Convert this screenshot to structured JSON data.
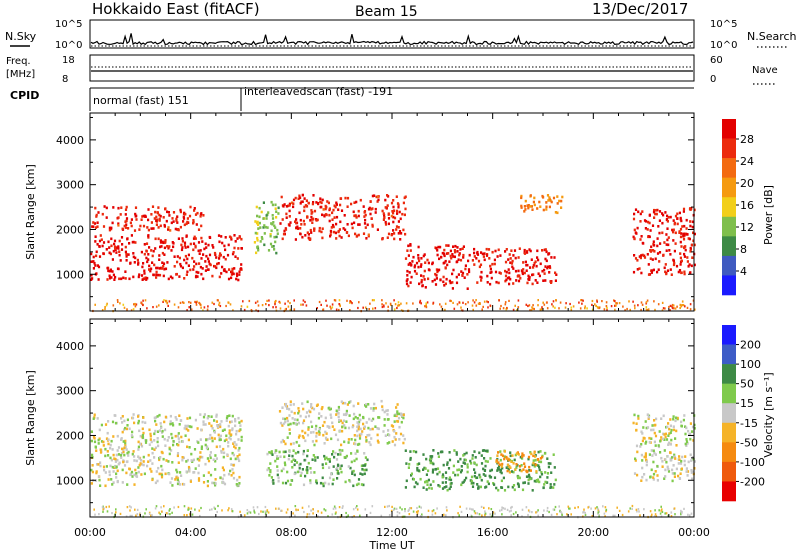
{
  "header": {
    "station": "Hokkaido East (fitACF)",
    "beam": "Beam 15",
    "date": "13/Dec/2017"
  },
  "noise_panel": {
    "left_label": "N.Sky",
    "right_label": "N.Search",
    "left_ticks": [
      "10^5",
      "10^0"
    ],
    "right_ticks": [
      "10^5",
      "10^0"
    ]
  },
  "freq_panel": {
    "left_label": "Freq.",
    "left_unit": "[MHz]",
    "right_label": "Nave",
    "left_ticks": [
      "18",
      "8"
    ],
    "right_ticks": [
      "60",
      "0"
    ]
  },
  "cpid": {
    "label": "CPID",
    "segments": [
      {
        "text": "normal (fast) 151",
        "start_hour": 0,
        "end_hour": 6
      },
      {
        "text": "interleavedscan (fast) -191",
        "start_hour": 6,
        "end_hour": 24
      }
    ]
  },
  "chart_data": [
    {
      "type": "heatmap",
      "name": "power",
      "ylabel": "Slant Range [km]",
      "y_ticks": [
        "1000",
        "2000",
        "3000",
        "4000"
      ],
      "ylim": [
        180,
        4600
      ],
      "x_ticks": [
        "00:00",
        "04:00",
        "08:00",
        "12:00",
        "16:00",
        "20:00",
        "00:00"
      ],
      "xlim_hours": [
        0,
        24
      ],
      "colorbar_label": "Power [dB]",
      "colorbar_ticks": [
        "4",
        "8",
        "12",
        "16",
        "20",
        "24",
        "28"
      ],
      "colorbar_colors": [
        "#1b1bff",
        "#3f5ac0",
        "#3d8a45",
        "#7fbf4c",
        "#f2cf1a",
        "#f59a10",
        "#f36a10",
        "#ec2a0d",
        "#e30000"
      ],
      "regions": [
        {
          "t0": 0.0,
          "t1": 6.0,
          "r0": 900,
          "r1": 1900,
          "value": 28
        },
        {
          "t0": 0.0,
          "t1": 4.5,
          "r0": 2000,
          "r1": 2550,
          "value": 26
        },
        {
          "t0": 6.5,
          "t1": 7.5,
          "r0": 1500,
          "r1": 2700,
          "value": 12
        },
        {
          "t0": 7.5,
          "t1": 12.5,
          "r0": 1800,
          "r1": 2800,
          "value": 26
        },
        {
          "t0": 12.5,
          "t1": 15.0,
          "r0": 700,
          "r1": 1700,
          "value": 28
        },
        {
          "t0": 15.0,
          "t1": 18.5,
          "r0": 800,
          "r1": 1600,
          "value": 27
        },
        {
          "t0": 17.0,
          "t1": 19.0,
          "r0": 2400,
          "r1": 2800,
          "value": 20
        },
        {
          "t0": 21.5,
          "t1": 24.0,
          "r0": 1000,
          "r1": 2500,
          "value": 27
        }
      ]
    },
    {
      "type": "heatmap",
      "name": "velocity",
      "ylabel": "Slant Range [km]",
      "y_ticks": [
        "1000",
        "2000",
        "3000",
        "4000"
      ],
      "ylim": [
        180,
        4600
      ],
      "x_ticks": [
        "00:00",
        "04:00",
        "08:00",
        "12:00",
        "16:00",
        "20:00",
        "00:00"
      ],
      "xlim_hours": [
        0,
        24
      ],
      "xlabel": "Time UT",
      "colorbar_label": "Velocity [m s⁻¹]",
      "colorbar_ticks": [
        "200",
        "100",
        "50",
        "15",
        "-15",
        "-50",
        "-100",
        "-200"
      ],
      "colorbar_colors": [
        "#1a1aff",
        "#3d5cc7",
        "#3d8a45",
        "#7fca4c",
        "#c8c8c8",
        "#f5b328",
        "#f58a10",
        "#ef5a0d",
        "#e80000"
      ],
      "regions": [
        {
          "t0": 0.0,
          "t1": 6.0,
          "r0": 900,
          "r1": 2500,
          "value": 0
        },
        {
          "t0": 7.5,
          "t1": 12.5,
          "r0": 1800,
          "r1": 2800,
          "value": 0
        },
        {
          "t0": 7.0,
          "t1": 11.0,
          "r0": 900,
          "r1": 1700,
          "value": 40
        },
        {
          "t0": 12.5,
          "t1": 18.5,
          "r0": 800,
          "r1": 1700,
          "value": 60
        },
        {
          "t0": 16.0,
          "t1": 18.0,
          "r0": 1200,
          "r1": 1700,
          "value": -60
        },
        {
          "t0": 21.5,
          "t1": 24.0,
          "r0": 1000,
          "r1": 2500,
          "value": 0
        }
      ]
    }
  ]
}
